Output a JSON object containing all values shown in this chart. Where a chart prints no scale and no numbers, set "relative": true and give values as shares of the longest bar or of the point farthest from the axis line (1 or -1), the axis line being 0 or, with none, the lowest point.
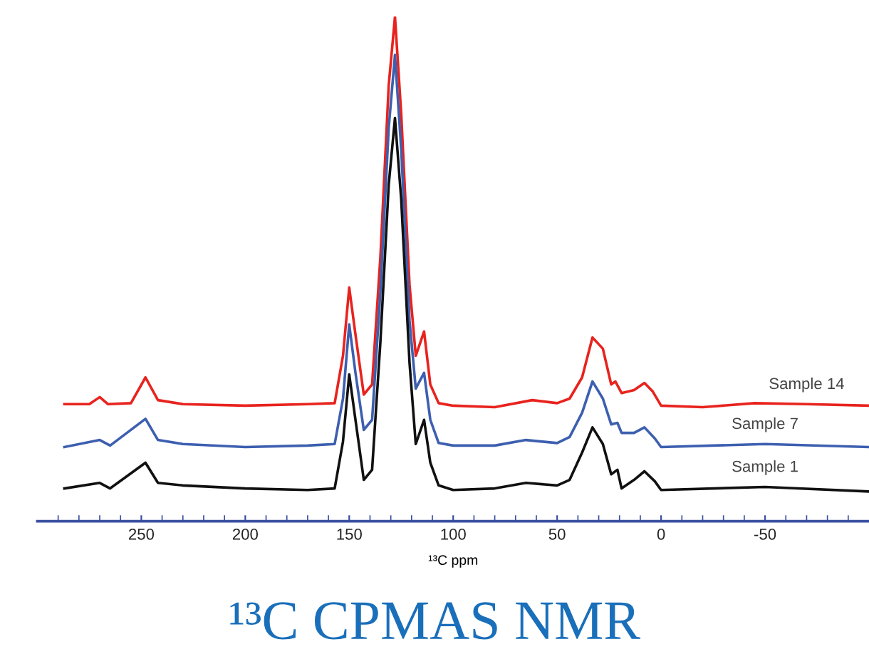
{
  "chart_data": {
    "type": "line",
    "relative": true,
    "xlabel": "¹³C ppm",
    "annotations": [
      "¹³C CPMAS NMR"
    ],
    "xlim": [
      300,
      -100
    ],
    "xticks": [
      250,
      200,
      150,
      100,
      50,
      0,
      -50,
      {
        "value": 290,
        "label": null
      },
      {
        "value": 280,
        "label": null
      },
      {
        "value": 270,
        "label": null
      },
      {
        "value": 260,
        "label": null
      },
      {
        "value": 240,
        "label": null
      },
      {
        "value": 230,
        "label": null
      },
      {
        "value": 220,
        "label": null
      },
      {
        "value": 210,
        "label": null
      },
      {
        "value": 190,
        "label": null
      },
      {
        "value": 180,
        "label": null
      },
      {
        "value": 170,
        "label": null
      },
      {
        "value": 160,
        "label": null
      },
      {
        "value": 140,
        "label": null
      },
      {
        "value": 130,
        "label": null
      },
      {
        "value": 120,
        "label": null
      },
      {
        "value": 110,
        "label": null
      },
      {
        "value": 90,
        "label": null
      },
      {
        "value": 80,
        "label": null
      },
      {
        "value": 70,
        "label": null
      },
      {
        "value": 60,
        "label": null
      },
      {
        "value": 40,
        "label": null
      },
      {
        "value": 30,
        "label": null
      },
      {
        "value": 20,
        "label": null
      },
      {
        "value": 10,
        "label": null
      },
      {
        "value": -10,
        "label": null
      },
      {
        "value": -20,
        "label": null
      },
      {
        "value": -30,
        "label": null
      },
      {
        "value": -40,
        "label": null
      },
      {
        "value": -60,
        "label": null
      },
      {
        "value": -70,
        "label": null
      },
      {
        "value": -80,
        "label": null
      },
      {
        "value": -90,
        "label": null
      }
    ],
    "tick_labels": "x",
    "grid": false,
    "legend": false,
    "marker": "none",
    "line_style": "solid",
    "series": [
      {
        "name": "Sample 14",
        "color": "#e8231e",
        "x": [
          287,
          275,
          270,
          266,
          255,
          248,
          242,
          230,
          200,
          170,
          157,
          153,
          150,
          147,
          143,
          139,
          135,
          131,
          128,
          125,
          121,
          118,
          114,
          111,
          107,
          100,
          80,
          62,
          50,
          44,
          38,
          33,
          28,
          24,
          22,
          19,
          13,
          8,
          4,
          0,
          -20,
          -45,
          -70,
          -100
        ],
        "values": [
          0.232,
          0.232,
          0.246,
          0.232,
          0.234,
          0.285,
          0.24,
          0.232,
          0.229,
          0.232,
          0.234,
          0.328,
          0.463,
          0.37,
          0.251,
          0.271,
          0.525,
          0.864,
          1.0,
          0.808,
          0.469,
          0.328,
          0.376,
          0.271,
          0.234,
          0.229,
          0.226,
          0.24,
          0.234,
          0.243,
          0.285,
          0.364,
          0.342,
          0.271,
          0.277,
          0.254,
          0.26,
          0.274,
          0.257,
          0.229,
          0.226,
          0.234,
          0.232,
          0.229
        ]
      },
      {
        "name": "Sample 7",
        "color": "#3d5fb0",
        "x": [
          287,
          270,
          265,
          248,
          242,
          230,
          200,
          170,
          157,
          153,
          150,
          147,
          143,
          139,
          135,
          131,
          128,
          125,
          121,
          118,
          114,
          111,
          107,
          100,
          80,
          65,
          50,
          44,
          38,
          33,
          28,
          24,
          21,
          19,
          13,
          8,
          3,
          0,
          -50,
          -100
        ],
        "values": [
          0.147,
          0.161,
          0.15,
          0.203,
          0.161,
          0.153,
          0.147,
          0.15,
          0.153,
          0.243,
          0.39,
          0.294,
          0.181,
          0.201,
          0.455,
          0.78,
          0.924,
          0.737,
          0.398,
          0.263,
          0.294,
          0.201,
          0.155,
          0.15,
          0.15,
          0.161,
          0.155,
          0.167,
          0.215,
          0.277,
          0.243,
          0.192,
          0.195,
          0.175,
          0.175,
          0.186,
          0.164,
          0.147,
          0.153,
          0.147
        ]
      },
      {
        "name": "Sample 1",
        "color": "#111111",
        "x": [
          287,
          270,
          265,
          248,
          242,
          230,
          200,
          170,
          157,
          153,
          150,
          147,
          143,
          139,
          135,
          131,
          128,
          125,
          121,
          118,
          114,
          111,
          107,
          100,
          80,
          65,
          50,
          44,
          38,
          33,
          28,
          24,
          21,
          19,
          13,
          8,
          3,
          0,
          -50,
          -100
        ],
        "values": [
          0.065,
          0.076,
          0.065,
          0.116,
          0.076,
          0.071,
          0.065,
          0.062,
          0.065,
          0.158,
          0.291,
          0.201,
          0.082,
          0.102,
          0.356,
          0.667,
          0.799,
          0.638,
          0.314,
          0.153,
          0.201,
          0.116,
          0.071,
          0.062,
          0.065,
          0.076,
          0.071,
          0.082,
          0.136,
          0.186,
          0.153,
          0.093,
          0.102,
          0.065,
          0.082,
          0.099,
          0.079,
          0.062,
          0.068,
          0.059
        ]
      }
    ]
  }
}
